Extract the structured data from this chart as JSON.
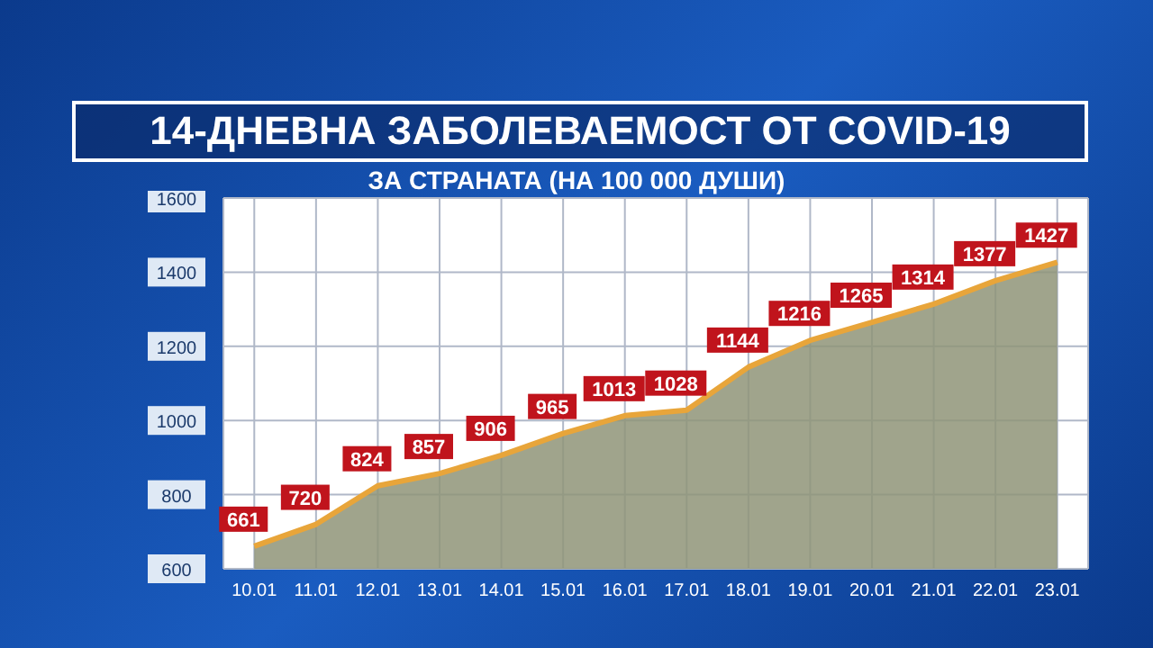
{
  "chart_data": {
    "type": "area",
    "title": "14-ДНЕВНА ЗАБОЛЕВАЕМОСТ ОТ COVID-19",
    "subtitle": "ЗА СТРАНАТА (НА 100 000 ДУШИ)",
    "categories": [
      "10.01",
      "11.01",
      "12.01",
      "13.01",
      "14.01",
      "15.01",
      "16.01",
      "17.01",
      "18.01",
      "19.01",
      "20.01",
      "21.01",
      "22.01",
      "23.01"
    ],
    "series": [
      {
        "color": "#e8a53a",
        "values": [
          661,
          720,
          824,
          857,
          906,
          965,
          1013,
          1028,
          1144,
          1216,
          1265,
          1314,
          1377,
          1427
        ]
      }
    ],
    "ylim": [
      600,
      1600
    ],
    "yticks": [
      600,
      800,
      1000,
      1200,
      1400,
      1600
    ],
    "grid": true,
    "data_labels": true
  }
}
